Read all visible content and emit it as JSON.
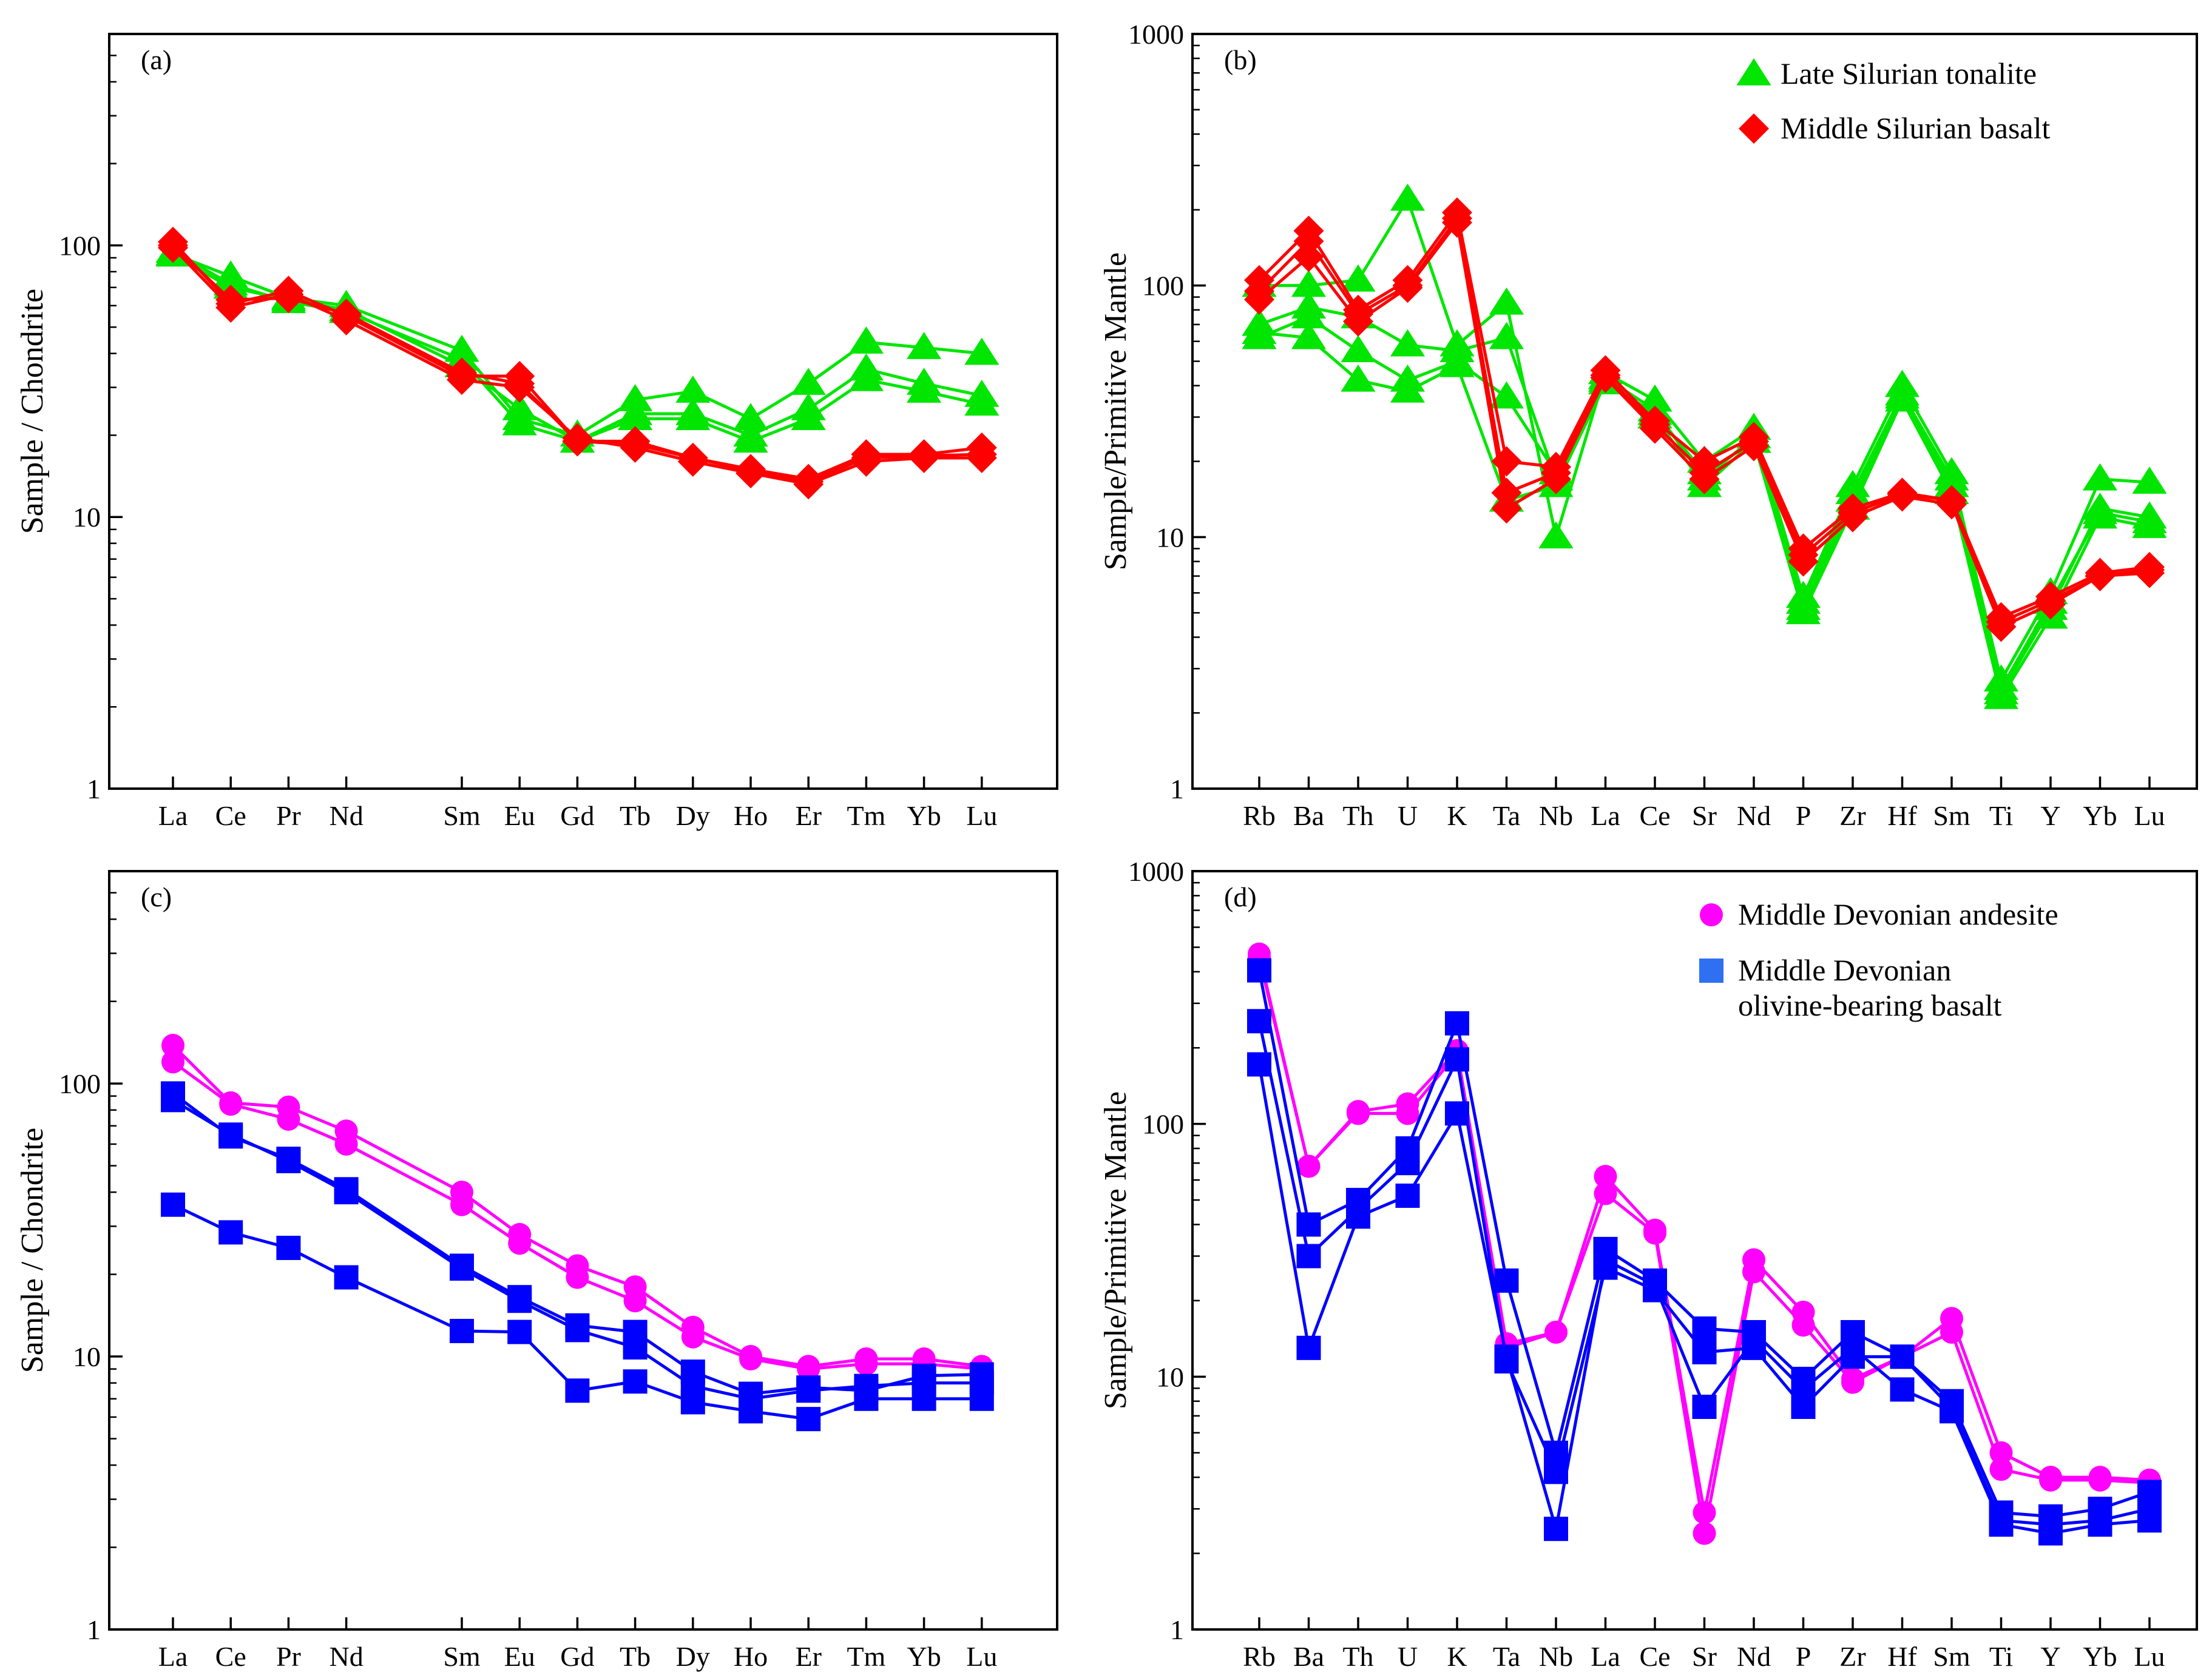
{
  "figure": {
    "colors": {
      "late_silurian_tonalite": "#00e600",
      "middle_silurian_basalt": "#ff0000",
      "middle_devonian_andesite": "#ff00ff",
      "middle_devonian_basalt_line": "#0000ff",
      "middle_devonian_basalt_legend": "#2f6ff2"
    }
  },
  "chart_data": [
    {
      "panel": "(a)",
      "type": "line",
      "scale": "log",
      "ylabel": "Sample / Chondrite",
      "ylim": [
        1,
        600
      ],
      "yticks": [
        "1",
        "10",
        "100"
      ],
      "categories": [
        "La",
        "Ce",
        "Pr",
        "Nd",
        "Sm",
        "Eu",
        "Gd",
        "Tb",
        "Dy",
        "Ho",
        "Er",
        "Tm",
        "Yb",
        "Lu"
      ],
      "positions": [
        0,
        1,
        2,
        3,
        5,
        6,
        7,
        8,
        9,
        10,
        11,
        12,
        13,
        14
      ],
      "series": [
        {
          "name": "Late Silurian tonalite",
          "marker": "triangle",
          "color": "#00e600",
          "values": [
            93,
            77,
            64,
            60,
            41,
            23,
            20,
            27,
            29,
            23,
            31,
            44,
            42,
            40
          ]
        },
        {
          "name": "Late Silurian tonalite",
          "marker": "triangle",
          "color": "#00e600",
          "values": [
            95,
            72,
            62,
            57,
            38,
            22,
            19,
            24,
            24,
            20,
            25,
            35,
            31,
            28
          ]
        },
        {
          "name": "Late Silurian tonalite",
          "marker": "triangle",
          "color": "#00e600",
          "values": [
            92,
            70,
            63,
            58,
            36,
            25,
            19,
            23,
            23,
            19,
            23,
            32,
            29,
            26
          ]
        },
        {
          "name": "Middle Silurian basalt",
          "marker": "diamond",
          "color": "#ff0000",
          "values": [
            103,
            61,
            68,
            55,
            33,
            33,
            19,
            19,
            16.5,
            15,
            13.8,
            17,
            17,
            18
          ]
        },
        {
          "name": "Middle Silurian basalt",
          "marker": "diamond",
          "color": "#ff0000",
          "values": [
            98,
            59,
            66,
            53,
            32,
            30,
            19.5,
            18,
            16,
            14.5,
            13.2,
            16,
            16.5,
            16.5
          ]
        },
        {
          "name": "Middle Silurian basalt",
          "marker": "diamond",
          "color": "#ff0000",
          "values": [
            100,
            63,
            64,
            56,
            34,
            31,
            19,
            18.5,
            16.5,
            14.8,
            13.5,
            16.5,
            16.8,
            17
          ]
        }
      ]
    },
    {
      "panel": "(b)",
      "type": "line",
      "scale": "log",
      "ylabel": "Sample/Primitive Mantle",
      "ylim": [
        1,
        1000
      ],
      "yticks": [
        "1",
        "10",
        "100",
        "1000"
      ],
      "categories": [
        "Rb",
        "Ba",
        "Th",
        "U",
        "K",
        "Ta",
        "Nb",
        "La",
        "Ce",
        "Sr",
        "Nd",
        "P",
        "Zr",
        "Hf",
        "Sm",
        "Ti",
        "Y",
        "Yb",
        "Lu"
      ],
      "positions": [
        0,
        1,
        2,
        3,
        4,
        5,
        6,
        7,
        8,
        9,
        10,
        11,
        12,
        13,
        14,
        15,
        16,
        17,
        18
      ],
      "legend": [
        {
          "label": "Late Silurian tonalite",
          "marker": "triangle",
          "color": "#00e600"
        },
        {
          "label": "Middle Silurian basalt",
          "marker": "diamond",
          "color": "#ff0000"
        }
      ],
      "series": [
        {
          "name": "Late Silurian tonalite",
          "marker": "triangle",
          "color": "#00e600",
          "values": [
            100,
            100,
            105,
            220,
            58,
            85,
            10,
            45,
            35,
            20,
            27,
            5.8,
            16,
            40,
            18,
            2.7,
            6.0,
            17,
            16.5
          ]
        },
        {
          "name": "Late Silurian tonalite",
          "marker": "triangle",
          "color": "#00e600",
          "values": [
            70,
            82,
            75,
            58,
            55,
            62,
            17,
            43,
            32,
            17,
            25,
            5.2,
            14,
            36,
            16,
            2.4,
            5.2,
            13,
            12
          ]
        },
        {
          "name": "Late Silurian tonalite",
          "marker": "triangle",
          "color": "#00e600",
          "values": [
            62,
            75,
            55,
            42,
            50,
            36,
            18,
            42,
            30,
            16,
            24,
            5.0,
            13,
            35,
            15,
            2.3,
            4.8,
            12,
            11
          ]
        },
        {
          "name": "Late Silurian tonalite",
          "marker": "triangle",
          "color": "#00e600",
          "values": [
            65,
            62,
            42,
            38,
            48,
            14,
            16,
            41,
            31,
            18,
            24,
            5.5,
            15,
            37,
            17,
            2.5,
            5.5,
            12.5,
            11.5
          ]
        },
        {
          "name": "Middle Silurian basalt",
          "marker": "diamond",
          "color": "#ff0000",
          "values": [
            105,
            165,
            80,
            105,
            195,
            20,
            19,
            46,
            29,
            20,
            25,
            9.0,
            13,
            15,
            14,
            4.8,
            5.8,
            7.2,
            7.6
          ]
        },
        {
          "name": "Middle Silurian basalt",
          "marker": "diamond",
          "color": "#ff0000",
          "values": [
            95,
            150,
            77,
            100,
            185,
            15,
            18,
            44,
            28,
            18,
            24,
            8.5,
            12.5,
            14.8,
            14,
            4.6,
            5.6,
            7.0,
            7.4
          ]
        },
        {
          "name": "Middle Silurian basalt",
          "marker": "diamond",
          "color": "#ff0000",
          "values": [
            88,
            130,
            72,
            98,
            178,
            13,
            17,
            43,
            27,
            17,
            23,
            8.0,
            12,
            14.5,
            13.5,
            4.4,
            5.4,
            7.0,
            7.2
          ]
        }
      ]
    },
    {
      "panel": "(c)",
      "type": "line",
      "scale": "log",
      "ylabel": "Sample / Chondrite",
      "ylim": [
        1,
        600
      ],
      "yticks": [
        "1",
        "10",
        "100"
      ],
      "categories": [
        "La",
        "Ce",
        "Pr",
        "Nd",
        "Sm",
        "Eu",
        "Gd",
        "Tb",
        "Dy",
        "Ho",
        "Er",
        "Tm",
        "Yb",
        "Lu"
      ],
      "positions": [
        0,
        1,
        2,
        3,
        5,
        6,
        7,
        8,
        9,
        10,
        11,
        12,
        13,
        14
      ],
      "series": [
        {
          "name": "Middle Devonian andesite",
          "marker": "circle",
          "color": "#ff00ff",
          "values": [
            138,
            85,
            82,
            67,
            40,
            28,
            21.5,
            18,
            12.8,
            10,
            9.2,
            9.8,
            9.8,
            9.2
          ]
        },
        {
          "name": "Middle Devonian andesite",
          "marker": "circle",
          "color": "#ff00ff",
          "values": [
            120,
            84,
            74,
            60,
            36,
            26,
            19.5,
            16,
            11.8,
            9.8,
            9.0,
            9.4,
            9.4,
            9.0
          ]
        },
        {
          "name": "Middle Devonian olivine-bearing basalt",
          "marker": "square",
          "color": "#0000ff",
          "values": [
            92,
            64,
            53,
            41,
            21.5,
            16.5,
            13,
            12.3,
            8.8,
            7.3,
            7.7,
            7.5,
            8.5,
            8.6
          ]
        },
        {
          "name": "Middle Devonian olivine-bearing basalt",
          "marker": "square",
          "color": "#0000ff",
          "values": [
            87,
            65,
            52,
            40,
            21,
            16,
            12.5,
            10.8,
            7.8,
            7.0,
            7.5,
            7.8,
            8.0,
            8.0
          ]
        },
        {
          "name": "Middle Devonian olivine-bearing basalt",
          "marker": "square",
          "color": "#0000ff",
          "values": [
            36,
            28.5,
            25,
            19.5,
            12.4,
            12.3,
            7.5,
            8.1,
            6.8,
            6.3,
            5.9,
            7.0,
            7.0,
            7.0
          ]
        }
      ]
    },
    {
      "panel": "(d)",
      "type": "line",
      "scale": "log",
      "ylabel": "Sample/Primitive Mantle",
      "ylim": [
        1,
        1000
      ],
      "yticks": [
        "1",
        "10",
        "100",
        "1000"
      ],
      "categories": [
        "Rb",
        "Ba",
        "Th",
        "U",
        "K",
        "Ta",
        "Nb",
        "La",
        "Ce",
        "Sr",
        "Nd",
        "P",
        "Zr",
        "Hf",
        "Sm",
        "Ti",
        "Y",
        "Yb",
        "Lu"
      ],
      "positions": [
        0,
        1,
        2,
        3,
        4,
        5,
        6,
        7,
        8,
        9,
        10,
        11,
        12,
        13,
        14,
        15,
        16,
        17,
        18
      ],
      "legend": [
        {
          "label": "Middle Devonian andesite",
          "marker": "circle",
          "color": "#ff00ff"
        },
        {
          "label": [
            "Middle Devonian",
            "olivine-bearing basalt"
          ],
          "marker": "square",
          "color": "#2f6ff2"
        }
      ],
      "series": [
        {
          "name": "Middle Devonian andesite",
          "marker": "circle",
          "color": "#ff00ff",
          "values": [
            470,
            68,
            112,
            120,
            195,
            13.5,
            15,
            62,
            38,
            2.9,
            29,
            18,
            9.8,
            12,
            17,
            5.0,
            4.0,
            4.0,
            3.9
          ]
        },
        {
          "name": "Middle Devonian andesite",
          "marker": "circle",
          "color": "#ff00ff",
          "values": [
            455,
            68,
            110,
            110,
            190,
            13,
            15,
            53,
            37,
            2.4,
            26,
            16,
            9.5,
            12,
            15,
            4.3,
            3.9,
            3.9,
            3.8
          ]
        },
        {
          "name": "Middle Devonian olivine-bearing basalt",
          "marker": "square",
          "color": "#0000ff",
          "values": [
            405,
            40,
            50,
            80,
            250,
            24,
            5.0,
            32,
            24,
            15.5,
            15,
            9.8,
            15,
            12,
            8.0,
            2.9,
            2.8,
            3.0,
            3.5
          ]
        },
        {
          "name": "Middle Devonian olivine-bearing basalt",
          "marker": "square",
          "color": "#0000ff",
          "values": [
            255,
            30,
            46,
            70,
            180,
            11.5,
            4.2,
            27,
            22,
            12.5,
            13,
            7.6,
            12,
            12,
            7.5,
            2.7,
            2.6,
            2.7,
            3.0
          ]
        },
        {
          "name": "Middle Devonian olivine-bearing basalt",
          "marker": "square",
          "color": "#0000ff",
          "values": [
            172,
            13,
            43,
            52,
            110,
            12,
            2.5,
            29,
            23,
            7.6,
            14,
            8.9,
            13,
            8.9,
            7.3,
            2.6,
            2.4,
            2.6,
            2.7
          ]
        }
      ]
    }
  ]
}
